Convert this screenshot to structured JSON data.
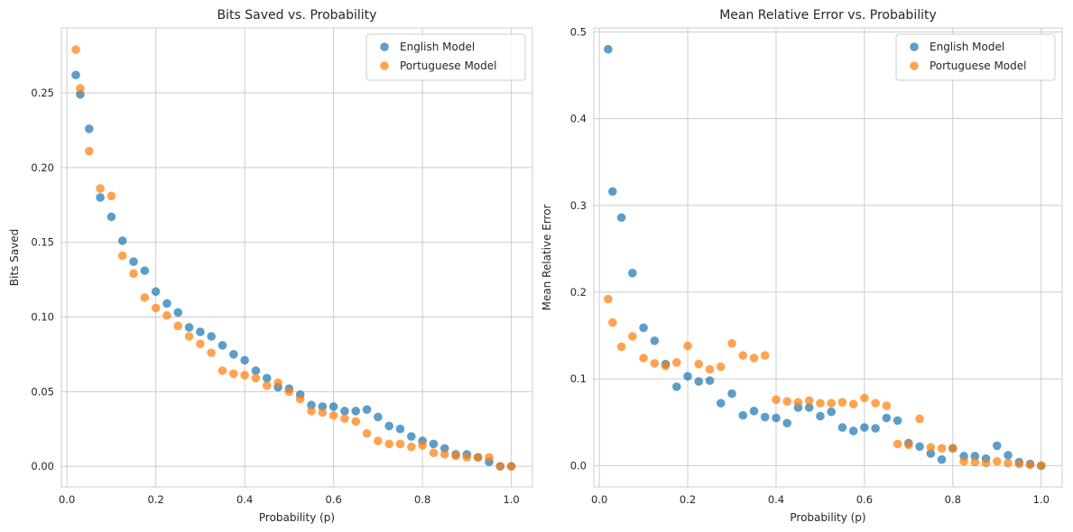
{
  "colors": {
    "series_0": "#1f77b4",
    "series_1": "#ff7f0e",
    "grid": "#cccccc",
    "frame": "#cccccc"
  },
  "chart_data": [
    {
      "type": "scatter",
      "title": "Bits Saved vs. Probability",
      "xlabel": "Probability (p)",
      "ylabel": "Bits Saved",
      "xlim": [
        -0.0125,
        1.0475
      ],
      "ylim": [
        -0.0138,
        0.2935
      ],
      "xticks": [
        0.0,
        0.2,
        0.4,
        0.6,
        0.8,
        1.0
      ],
      "xtick_labels": [
        "0.0",
        "0.2",
        "0.4",
        "0.6",
        "0.8",
        "1.0"
      ],
      "yticks": [
        0.0,
        0.05,
        0.1,
        0.15,
        0.2,
        0.25
      ],
      "ytick_labels": [
        "0.00",
        "0.05",
        "0.10",
        "0.15",
        "0.20",
        "0.25"
      ],
      "grid": true,
      "legend_position": "top-right",
      "series": [
        {
          "name": "English Model",
          "x": [
            0.02,
            0.03,
            0.05,
            0.075,
            0.1,
            0.125,
            0.15,
            0.175,
            0.2,
            0.225,
            0.25,
            0.275,
            0.3,
            0.325,
            0.35,
            0.375,
            0.4,
            0.425,
            0.45,
            0.475,
            0.5,
            0.525,
            0.55,
            0.575,
            0.6,
            0.625,
            0.65,
            0.675,
            0.7,
            0.725,
            0.75,
            0.775,
            0.8,
            0.825,
            0.85,
            0.875,
            0.9,
            0.925,
            0.95,
            0.975,
            1.0
          ],
          "y": [
            0.262,
            0.249,
            0.226,
            0.18,
            0.167,
            0.151,
            0.137,
            0.131,
            0.117,
            0.109,
            0.103,
            0.093,
            0.09,
            0.087,
            0.081,
            0.075,
            0.071,
            0.064,
            0.059,
            0.053,
            0.052,
            0.048,
            0.041,
            0.04,
            0.04,
            0.037,
            0.037,
            0.038,
            0.033,
            0.027,
            0.025,
            0.02,
            0.017,
            0.015,
            0.012,
            0.008,
            0.008,
            0.006,
            0.003,
            0.0,
            0.0
          ]
        },
        {
          "name": "Portuguese Model",
          "x": [
            0.02,
            0.03,
            0.05,
            0.075,
            0.1,
            0.125,
            0.15,
            0.175,
            0.2,
            0.225,
            0.25,
            0.275,
            0.3,
            0.325,
            0.35,
            0.375,
            0.4,
            0.425,
            0.45,
            0.475,
            0.5,
            0.525,
            0.55,
            0.575,
            0.6,
            0.625,
            0.65,
            0.675,
            0.7,
            0.725,
            0.75,
            0.775,
            0.8,
            0.825,
            0.85,
            0.875,
            0.9,
            0.925,
            0.95,
            0.975,
            1.0
          ],
          "y": [
            0.279,
            0.253,
            0.211,
            0.186,
            0.181,
            0.141,
            0.129,
            0.113,
            0.106,
            0.101,
            0.094,
            0.087,
            0.082,
            0.076,
            0.064,
            0.062,
            0.061,
            0.059,
            0.054,
            0.056,
            0.05,
            0.045,
            0.037,
            0.036,
            0.034,
            0.032,
            0.03,
            0.022,
            0.017,
            0.015,
            0.015,
            0.013,
            0.014,
            0.009,
            0.008,
            0.007,
            0.006,
            0.006,
            0.006,
            0.0,
            0.0
          ]
        }
      ]
    },
    {
      "type": "scatter",
      "title": "Mean Relative Error vs. Probability",
      "xlabel": "Probability (p)",
      "ylabel": "Mean Relative Error",
      "xlim": [
        -0.0125,
        1.0475
      ],
      "ylim": [
        -0.0245,
        0.5045
      ],
      "xticks": [
        0.0,
        0.2,
        0.4,
        0.6,
        0.8,
        1.0
      ],
      "xtick_labels": [
        "0.0",
        "0.2",
        "0.4",
        "0.6",
        "0.8",
        "1.0"
      ],
      "yticks": [
        0.0,
        0.1,
        0.2,
        0.3,
        0.4,
        0.5
      ],
      "ytick_labels": [
        "0.0",
        "0.1",
        "0.2",
        "0.3",
        "0.4",
        "0.5"
      ],
      "grid": true,
      "legend_position": "top-right",
      "series": [
        {
          "name": "English Model",
          "x": [
            0.02,
            0.03,
            0.05,
            0.075,
            0.1,
            0.125,
            0.15,
            0.175,
            0.2,
            0.225,
            0.25,
            0.275,
            0.3,
            0.325,
            0.35,
            0.375,
            0.4,
            0.425,
            0.45,
            0.475,
            0.5,
            0.525,
            0.55,
            0.575,
            0.6,
            0.625,
            0.65,
            0.675,
            0.7,
            0.725,
            0.75,
            0.775,
            0.8,
            0.825,
            0.85,
            0.875,
            0.9,
            0.925,
            0.95,
            0.975,
            1.0
          ],
          "y": [
            0.48,
            0.316,
            0.286,
            0.222,
            0.159,
            0.144,
            0.117,
            0.091,
            0.103,
            0.097,
            0.098,
            0.072,
            0.083,
            0.058,
            0.063,
            0.056,
            0.055,
            0.049,
            0.067,
            0.067,
            0.057,
            0.062,
            0.044,
            0.04,
            0.044,
            0.043,
            0.055,
            0.052,
            0.026,
            0.022,
            0.014,
            0.007,
            0.02,
            0.011,
            0.011,
            0.008,
            0.023,
            0.012,
            0.004,
            0.002,
            0.0
          ]
        },
        {
          "name": "Portuguese Model",
          "x": [
            0.02,
            0.03,
            0.05,
            0.075,
            0.1,
            0.125,
            0.15,
            0.175,
            0.2,
            0.225,
            0.25,
            0.275,
            0.3,
            0.325,
            0.35,
            0.375,
            0.4,
            0.425,
            0.45,
            0.475,
            0.5,
            0.525,
            0.55,
            0.575,
            0.6,
            0.625,
            0.65,
            0.675,
            0.7,
            0.725,
            0.75,
            0.775,
            0.8,
            0.825,
            0.85,
            0.875,
            0.9,
            0.925,
            0.95,
            0.975,
            1.0
          ],
          "y": [
            0.192,
            0.165,
            0.137,
            0.149,
            0.124,
            0.118,
            0.115,
            0.119,
            0.138,
            0.117,
            0.111,
            0.114,
            0.141,
            0.127,
            0.124,
            0.127,
            0.076,
            0.074,
            0.073,
            0.075,
            0.072,
            0.072,
            0.073,
            0.071,
            0.078,
            0.072,
            0.069,
            0.025,
            0.024,
            0.054,
            0.021,
            0.02,
            0.02,
            0.005,
            0.004,
            0.003,
            0.005,
            0.003,
            0.002,
            0.001,
            0.0
          ]
        }
      ]
    }
  ]
}
